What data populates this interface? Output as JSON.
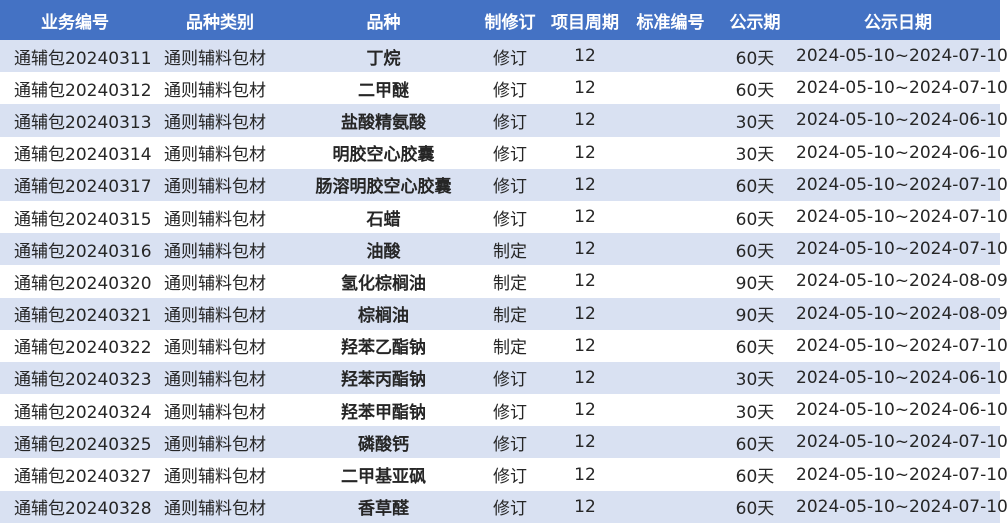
{
  "headers": [
    "业务编号",
    "品种类别",
    "品种",
    "制修订",
    "项目周期",
    "标准编号",
    "公示期",
    "公示日期"
  ],
  "rows": [
    {
      "id": "通辅包20240311",
      "category": "通则辅料包材",
      "name": "丁烷",
      "type": "修订",
      "cycle": "12",
      "standard": "",
      "period": "60天",
      "date": "2024-05-10~2024-07-10"
    },
    {
      "id": "通辅包20240312",
      "category": "通则辅料包材",
      "name": "二甲醚",
      "type": "修订",
      "cycle": "12",
      "standard": "",
      "period": "60天",
      "date": "2024-05-10~2024-07-10"
    },
    {
      "id": "通辅包20240313",
      "category": "通则辅料包材",
      "name": "盐酸精氨酸",
      "type": "修订",
      "cycle": "12",
      "standard": "",
      "period": "30天",
      "date": "2024-05-10~2024-06-10"
    },
    {
      "id": "通辅包20240314",
      "category": "通则辅料包材",
      "name": "明胶空心胶囊",
      "type": "修订",
      "cycle": "12",
      "standard": "",
      "period": "30天",
      "date": "2024-05-10~2024-06-10"
    },
    {
      "id": "通辅包20240317",
      "category": "通则辅料包材",
      "name": "肠溶明胶空心胶囊",
      "type": "修订",
      "cycle": "12",
      "standard": "",
      "period": "60天",
      "date": "2024-05-10~2024-07-10"
    },
    {
      "id": "通辅包20240315",
      "category": "通则辅料包材",
      "name": "石蜡",
      "type": "修订",
      "cycle": "12",
      "standard": "",
      "period": "60天",
      "date": "2024-05-10~2024-07-10"
    },
    {
      "id": "通辅包20240316",
      "category": "通则辅料包材",
      "name": "油酸",
      "type": "制定",
      "cycle": "12",
      "standard": "",
      "period": "60天",
      "date": "2024-05-10~2024-07-10"
    },
    {
      "id": "通辅包20240320",
      "category": "通则辅料包材",
      "name": "氢化棕榈油",
      "type": "制定",
      "cycle": "12",
      "standard": "",
      "period": "90天",
      "date": "2024-05-10~2024-08-09"
    },
    {
      "id": "通辅包20240321",
      "category": "通则辅料包材",
      "name": "棕榈油",
      "type": "制定",
      "cycle": "12",
      "standard": "",
      "period": "90天",
      "date": "2024-05-10~2024-08-09"
    },
    {
      "id": "通辅包20240322",
      "category": "通则辅料包材",
      "name": "羟苯乙酯钠",
      "type": "制定",
      "cycle": "12",
      "standard": "",
      "period": "60天",
      "date": "2024-05-10~2024-07-10"
    },
    {
      "id": "通辅包20240323",
      "category": "通则辅料包材",
      "name": "羟苯丙酯钠",
      "type": "修订",
      "cycle": "12",
      "standard": "",
      "period": "30天",
      "date": "2024-05-10~2024-06-10"
    },
    {
      "id": "通辅包20240324",
      "category": "通则辅料包材",
      "name": "羟苯甲酯钠",
      "type": "修订",
      "cycle": "12",
      "standard": "",
      "period": "30天",
      "date": "2024-05-10~2024-06-10"
    },
    {
      "id": "通辅包20240325",
      "category": "通则辅料包材",
      "name": "磷酸钙",
      "type": "修订",
      "cycle": "12",
      "standard": "",
      "period": "60天",
      "date": "2024-05-10~2024-07-10"
    },
    {
      "id": "通辅包20240327",
      "category": "通则辅料包材",
      "name": "二甲基亚砜",
      "type": "修订",
      "cycle": "12",
      "standard": "",
      "period": "60天",
      "date": "2024-05-10~2024-07-10"
    },
    {
      "id": "通辅包20240328",
      "category": "通则辅料包材",
      "name": "香草醛",
      "type": "修订",
      "cycle": "12",
      "standard": "",
      "period": "60天",
      "date": "2024-05-10~2024-07-10"
    }
  ],
  "colors": {
    "header_bg": "#4472c4",
    "header_text": "#ffffff",
    "band_bg": "#d9e1f2",
    "text": "#262626"
  }
}
